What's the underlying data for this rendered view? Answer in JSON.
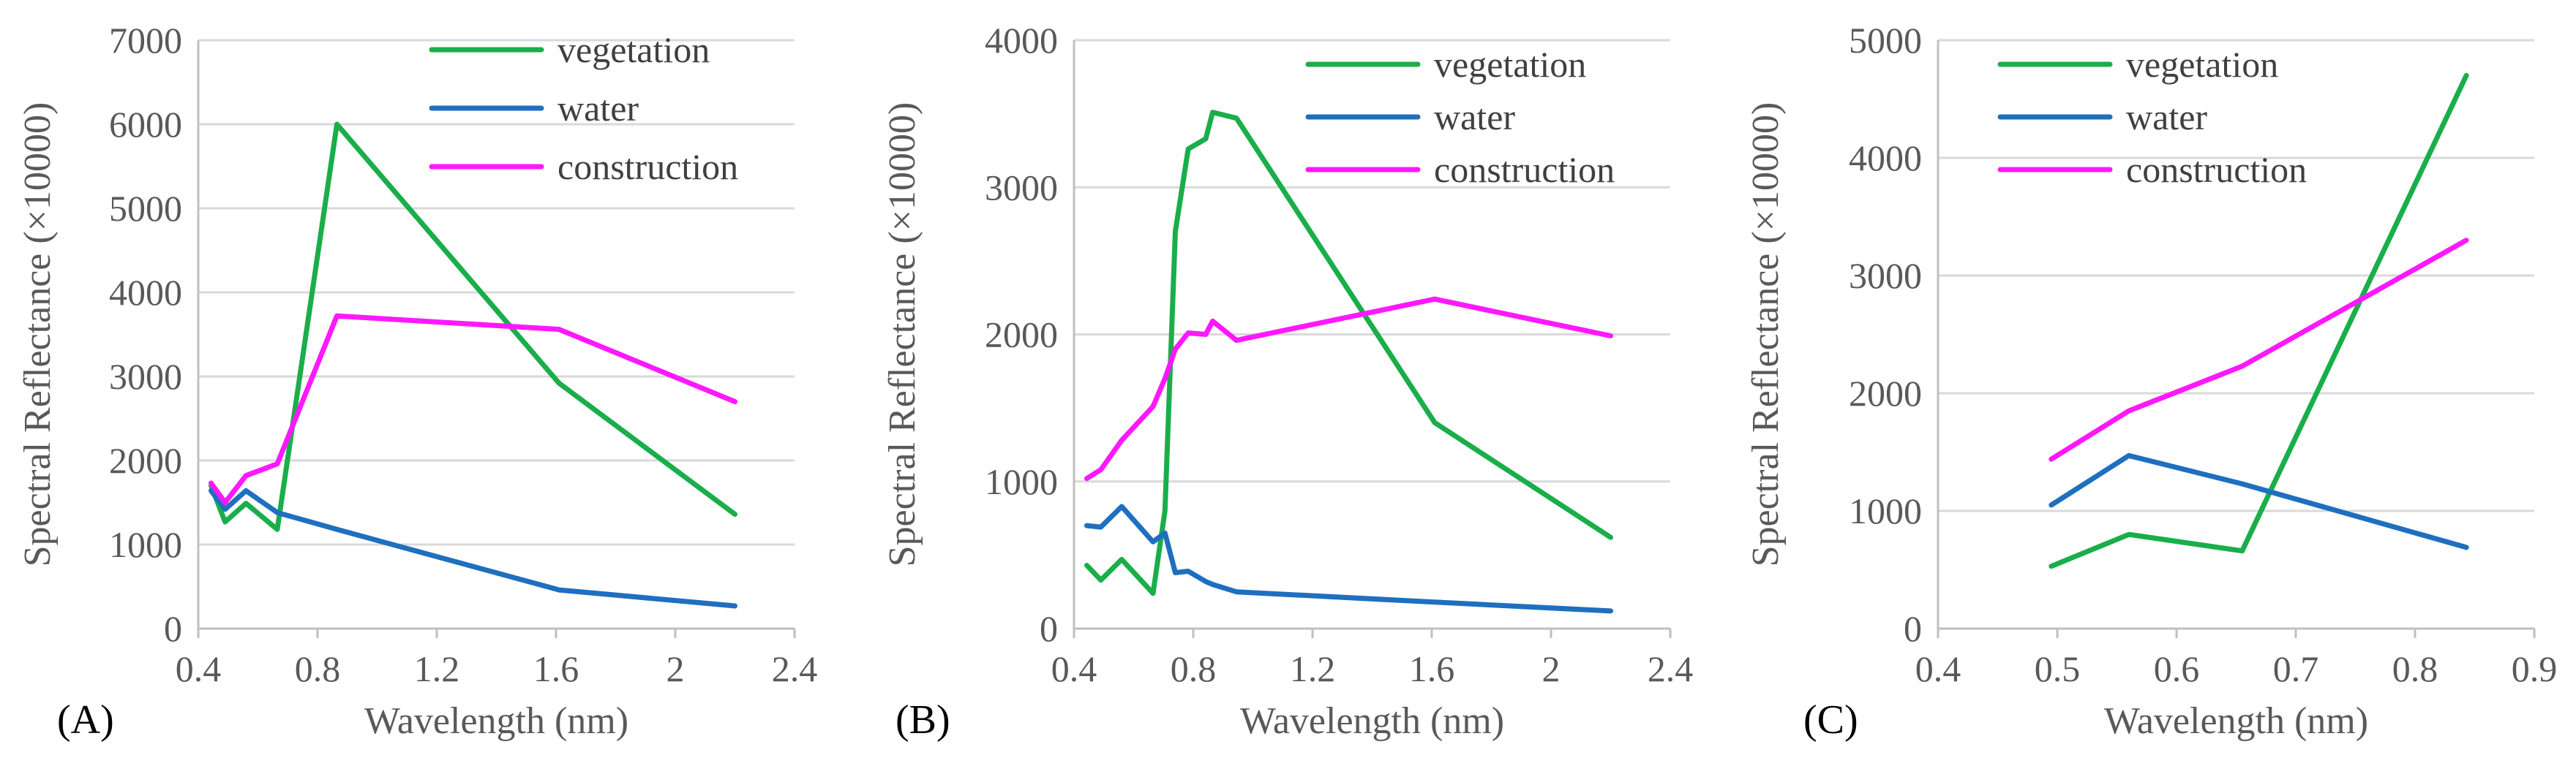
{
  "chart_data": [
    {
      "type": "line",
      "panel_label": "(A)",
      "xlabel": "Wavelength (nm)",
      "ylabel": "Spectral Reflectance (×10000)",
      "xlim": [
        0.4,
        2.4
      ],
      "ylim": [
        0,
        7000
      ],
      "xticks": [
        0.4,
        0.8,
        1.2,
        1.6,
        2,
        2.4
      ],
      "xtick_labels": [
        "0.4",
        "0.8",
        "1.2",
        "1.6",
        "2",
        "2.4"
      ],
      "yticks": [
        0,
        1000,
        2000,
        3000,
        4000,
        5000,
        6000,
        7000
      ],
      "ytick_labels": [
        "0",
        "1000",
        "2000",
        "3000",
        "4000",
        "5000",
        "6000",
        "7000"
      ],
      "grid": true,
      "legend_position": "top-right",
      "series": [
        {
          "name": "vegetation",
          "color": "#1aae4a",
          "x": [
            0.443,
            0.49,
            0.56,
            0.665,
            0.865,
            1.61,
            2.2
          ],
          "y": [
            1700,
            1270,
            1490,
            1180,
            6000,
            2920,
            1360
          ]
        },
        {
          "name": "water",
          "color": "#1f6fbf",
          "x": [
            0.443,
            0.49,
            0.56,
            0.665,
            0.865,
            1.61,
            2.2
          ],
          "y": [
            1640,
            1420,
            1640,
            1380,
            1180,
            460,
            270
          ]
        },
        {
          "name": "construction",
          "color": "#ff18ff",
          "x": [
            0.443,
            0.49,
            0.56,
            0.665,
            0.865,
            1.61,
            2.2
          ],
          "y": [
            1730,
            1500,
            1820,
            1960,
            3720,
            3560,
            2700
          ]
        }
      ]
    },
    {
      "type": "line",
      "panel_label": "(B)",
      "xlabel": "Wavelength (nm)",
      "ylabel": "Spectral Reflectance (×10000)",
      "xlim": [
        0.4,
        2.4
      ],
      "ylim": [
        0,
        4000
      ],
      "xticks": [
        0.4,
        0.8,
        1.2,
        1.6,
        2,
        2.4
      ],
      "xtick_labels": [
        "0.4",
        "0.8",
        "1.2",
        "1.6",
        "2",
        "2.4"
      ],
      "yticks": [
        0,
        1000,
        2000,
        3000,
        4000
      ],
      "ytick_labels": [
        "0",
        "1000",
        "2000",
        "3000",
        "4000"
      ],
      "grid": true,
      "legend_position": "top-right",
      "series": [
        {
          "name": "vegetation",
          "color": "#1aae4a",
          "x": [
            0.443,
            0.49,
            0.56,
            0.665,
            0.705,
            0.74,
            0.783,
            0.842,
            0.865,
            0.945,
            1.61,
            2.2
          ],
          "y": [
            430,
            330,
            470,
            240,
            800,
            2700,
            3260,
            3330,
            3510,
            3470,
            1400,
            620
          ]
        },
        {
          "name": "water",
          "color": "#1f6fbf",
          "x": [
            0.443,
            0.49,
            0.56,
            0.665,
            0.705,
            0.74,
            0.783,
            0.842,
            0.865,
            0.945,
            1.61,
            2.2
          ],
          "y": [
            700,
            690,
            830,
            590,
            650,
            380,
            390,
            320,
            300,
            250,
            180,
            120
          ]
        },
        {
          "name": "construction",
          "color": "#ff18ff",
          "x": [
            0.443,
            0.49,
            0.56,
            0.665,
            0.705,
            0.74,
            0.783,
            0.842,
            0.865,
            0.945,
            1.61,
            2.2
          ],
          "y": [
            1020,
            1080,
            1280,
            1510,
            1700,
            1900,
            2010,
            2000,
            2090,
            1960,
            2240,
            1990
          ]
        }
      ]
    },
    {
      "type": "line",
      "panel_label": "(C)",
      "xlabel": "Wavelength (nm)",
      "ylabel": "Spectral Reflectance (×10000)",
      "xlim": [
        0.4,
        0.9
      ],
      "ylim": [
        0,
        5000
      ],
      "xticks": [
        0.4,
        0.5,
        0.6,
        0.7,
        0.8,
        0.9
      ],
      "xtick_labels": [
        "0.4",
        "0.5",
        "0.6",
        "0.7",
        "0.8",
        "0.9"
      ],
      "yticks": [
        0,
        1000,
        2000,
        3000,
        4000,
        5000
      ],
      "ytick_labels": [
        "0",
        "1000",
        "2000",
        "3000",
        "4000",
        "5000"
      ],
      "grid": true,
      "legend_position": "top-left",
      "series": [
        {
          "name": "vegetation",
          "color": "#1aae4a",
          "x": [
            0.495,
            0.56,
            0.655,
            0.843
          ],
          "y": [
            530,
            800,
            660,
            4700
          ]
        },
        {
          "name": "water",
          "color": "#1f6fbf",
          "x": [
            0.495,
            0.56,
            0.655,
            0.843
          ],
          "y": [
            1050,
            1470,
            1230,
            690
          ]
        },
        {
          "name": "construction",
          "color": "#ff18ff",
          "x": [
            0.495,
            0.56,
            0.655,
            0.843
          ],
          "y": [
            1440,
            1850,
            2230,
            3300
          ]
        }
      ]
    }
  ]
}
